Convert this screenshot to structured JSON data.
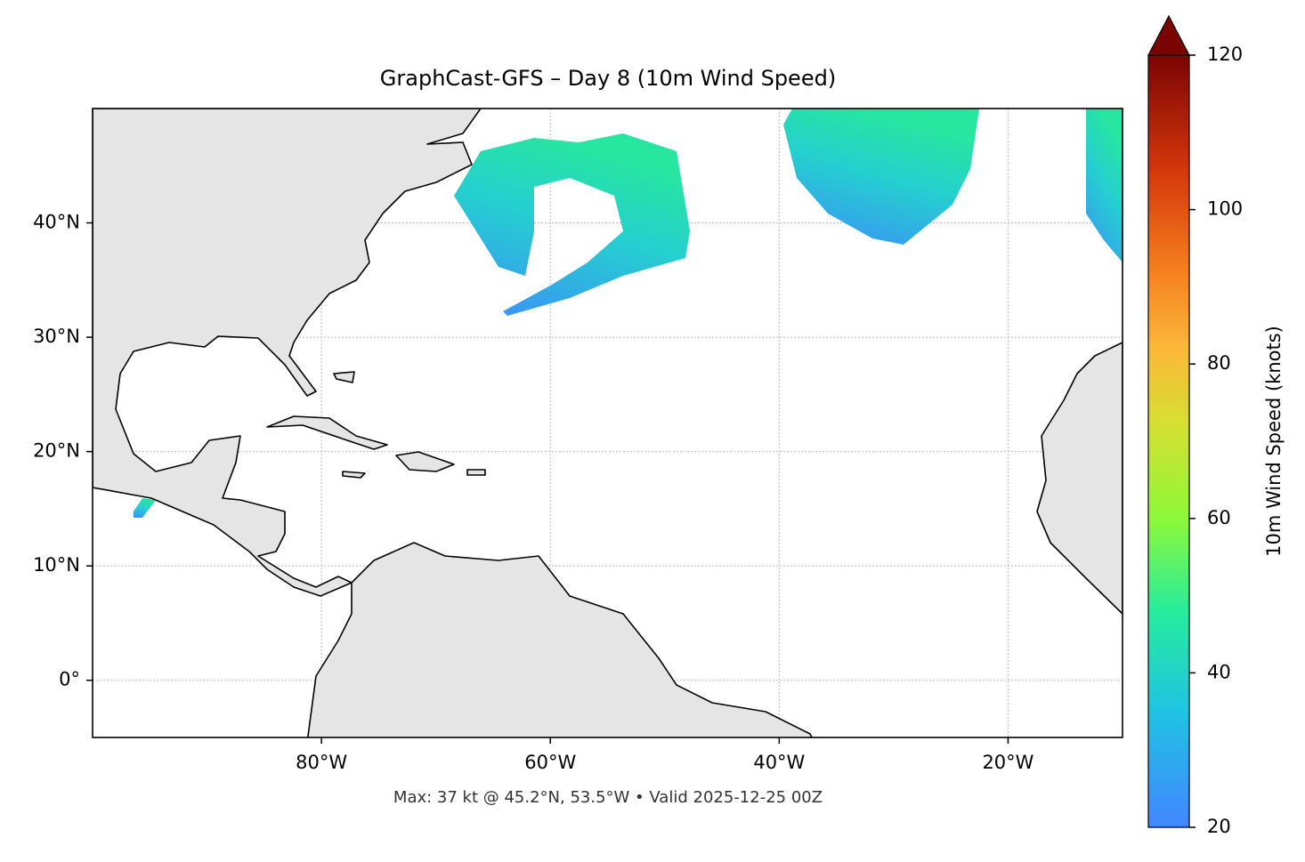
{
  "map": {
    "title": "GraphCast-GFS – Day 8 (10m Wind Speed)",
    "xlim": [
      -100,
      -10
    ],
    "ylim": [
      -5,
      50
    ],
    "xticks": [
      {
        "value": -80,
        "label": "80°W"
      },
      {
        "value": -60,
        "label": "60°W"
      },
      {
        "value": -40,
        "label": "40°W"
      },
      {
        "value": -20,
        "label": "20°W"
      }
    ],
    "yticks": [
      {
        "value": 0,
        "label": "0°"
      },
      {
        "value": 10,
        "label": "10°N"
      },
      {
        "value": 20,
        "label": "20°N"
      },
      {
        "value": 30,
        "label": "30°N"
      },
      {
        "value": 40,
        "label": "40°N"
      }
    ],
    "grid": true,
    "colorbar": {
      "label": "10m Wind Speed (knots)",
      "lim": [
        20,
        120
      ],
      "ticks": [
        20,
        40,
        60,
        80,
        100,
        120
      ],
      "extend": "max"
    },
    "caption": "Max: 37 kt @ 45.2°N, 53.5°W • Valid 2025-12-25 00Z"
  }
}
